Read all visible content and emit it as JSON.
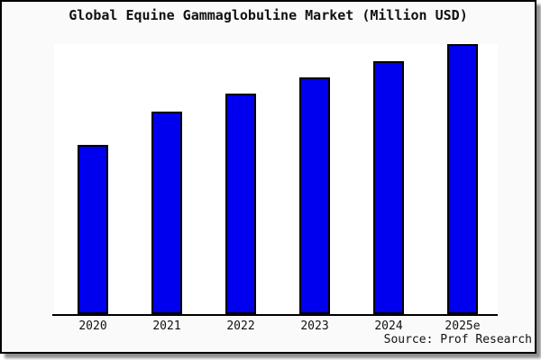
{
  "window": {
    "title": "Global Equine Gammaglobuline Market (Million USD)"
  },
  "source_note": "Source: Prof Research",
  "colors": {
    "bar_fill": "#0000ee",
    "bar_border": "#000000",
    "card_background": "#fafafa",
    "plot_background": "#ffffff",
    "axis": "#000000",
    "text": "#111111",
    "frame_shadow": "#8f8f8f"
  },
  "chart_data": {
    "type": "bar",
    "title": "Global Equine Gammaglobuline Market (Million USD)",
    "categories": [
      "2020",
      "2021",
      "2022",
      "2023",
      "2024",
      "2025e"
    ],
    "values": [
      188,
      225,
      245,
      263,
      281,
      300
    ],
    "xlabel": "",
    "ylabel": "",
    "ylim": [
      0,
      300
    ],
    "grid": false,
    "legend": false,
    "y_axis_shown": false,
    "note": "No y-axis or data labels shown; values are relative bar heights estimated from pixels"
  }
}
